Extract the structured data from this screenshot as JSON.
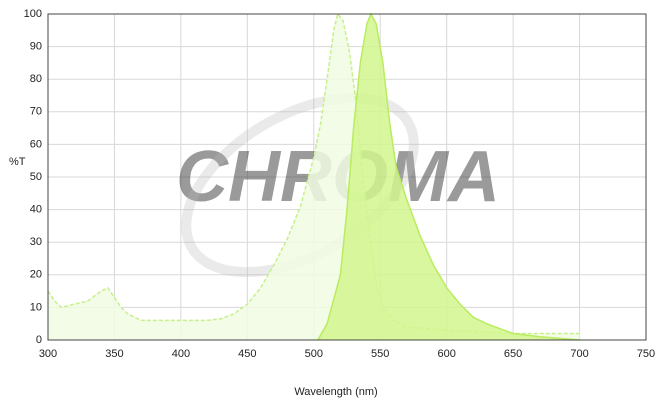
{
  "chart_data": {
    "type": "area",
    "watermark": "CHROMA",
    "ylabel": "%T",
    "xlabel": "Wavelength (nm)",
    "xlim": [
      300,
      750
    ],
    "xticks": [
      300,
      350,
      400,
      450,
      500,
      550,
      600,
      650,
      700,
      750
    ],
    "ylim": [
      0,
      100
    ],
    "yticks": [
      0,
      10,
      20,
      30,
      40,
      50,
      60,
      70,
      80,
      90,
      100
    ],
    "grid": true,
    "series": [
      {
        "color": "#c6f08c",
        "fill": "#f1fbe3",
        "line_style": "dashed",
        "x": [
          300,
          305,
          310,
          320,
          330,
          340,
          345,
          350,
          355,
          360,
          370,
          380,
          400,
          420,
          430,
          440,
          450,
          460,
          470,
          480,
          490,
          500,
          505,
          510,
          515,
          518,
          522,
          527,
          532,
          537,
          542,
          547,
          552,
          560,
          570,
          600,
          650,
          700
        ],
        "values": [
          15,
          12,
          10,
          11,
          12,
          15,
          16,
          13,
          10,
          8,
          6,
          6,
          6,
          6,
          6.5,
          8,
          11,
          16,
          23,
          31,
          41,
          56,
          66,
          80,
          95,
          100,
          98,
          88,
          72,
          50,
          32,
          17,
          10,
          6,
          4,
          3,
          2,
          2
        ]
      },
      {
        "color": "#b9ec5e",
        "fill": "#d2f68e",
        "line_style": "solid",
        "x": [
          503,
          510,
          520,
          525,
          530,
          535,
          540,
          543,
          547,
          552,
          557,
          562,
          570,
          580,
          590,
          600,
          610,
          620,
          630,
          650,
          670,
          700
        ],
        "values": [
          0,
          5,
          20,
          40,
          65,
          85,
          97,
          100,
          97,
          85,
          67,
          53,
          43,
          32,
          23,
          16,
          11,
          7,
          5,
          2,
          1,
          0
        ]
      }
    ]
  }
}
